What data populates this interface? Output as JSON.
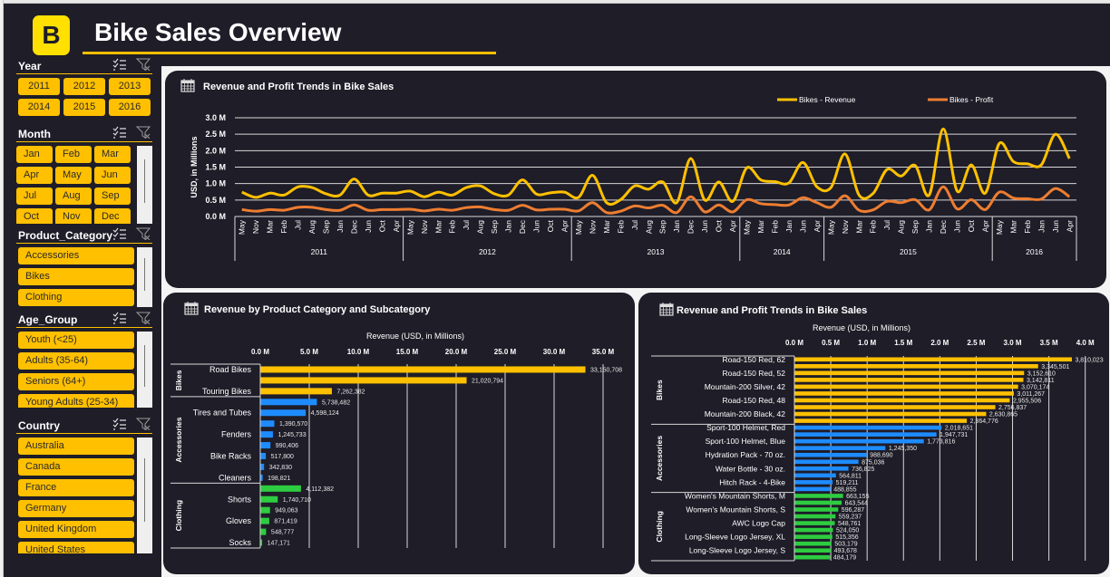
{
  "header": {
    "logo_letter": "B",
    "title": "Bike Sales Overview"
  },
  "colors": {
    "background": "#1e1d28",
    "accent": "#ffc000",
    "logo": "#ffe000",
    "bikes": "#ffc000",
    "accessories": "#1e8cff",
    "clothing": "#2ecc40",
    "revenue_line": "#ffc000",
    "profit_line": "#ed7d31"
  },
  "slicers": [
    {
      "title": "Year",
      "items": [
        "2011",
        "2012",
        "2013",
        "2014",
        "2015",
        "2016"
      ]
    },
    {
      "title": "Month",
      "items": [
        "Jan",
        "Feb",
        "Mar",
        "Apr",
        "May",
        "Jun",
        "Jul",
        "Aug",
        "Sep",
        "Oct",
        "Nov",
        "Dec"
      ]
    },
    {
      "title": "Product_Category",
      "items": [
        "Accessories",
        "Bikes",
        "Clothing"
      ]
    },
    {
      "title": "Age_Group",
      "items": [
        "Youth (<25)",
        "Adults (35-64)",
        "Seniors (64+)",
        "Young Adults (25-34)"
      ]
    },
    {
      "title": "Country",
      "items": [
        "Australia",
        "Canada",
        "France",
        "Germany",
        "United Kingdom",
        "United States"
      ]
    }
  ],
  "chart_data": [
    {
      "type": "line",
      "title": "Revenue and Profit Trends in Bike Sales",
      "ylabel": "USD, in Millions",
      "ylim": [
        0,
        3.0
      ],
      "yticks": [
        "0.0 M",
        "0.5 M",
        "1.0 M",
        "1.5 M",
        "2.0 M",
        "2.5 M",
        "3.0 M"
      ],
      "grid": true,
      "legend_position": "top-right",
      "years": [
        {
          "year": "2011",
          "months": [
            "May",
            "Nov",
            "Mar",
            "Feb",
            "Jul",
            "Aug",
            "Sep",
            "Jan",
            "Dec",
            "Jun",
            "Oct",
            "Apr"
          ]
        },
        {
          "year": "2012",
          "months": [
            "May",
            "Nov",
            "Mar",
            "Feb",
            "Jul",
            "Aug",
            "Sep",
            "Jan",
            "Dec",
            "Jun",
            "Oct",
            "Apr"
          ]
        },
        {
          "year": "2013",
          "months": [
            "May",
            "Nov",
            "Mar",
            "Feb",
            "Jul",
            "Aug",
            "Sep",
            "Jan",
            "Dec",
            "Jun",
            "Oct",
            "Apr"
          ]
        },
        {
          "year": "2014",
          "months": [
            "May",
            "Mar",
            "Feb",
            "Jan",
            "Jun",
            "Apr"
          ]
        },
        {
          "year": "2015",
          "months": [
            "May",
            "Nov",
            "Mar",
            "Feb",
            "Jul",
            "Aug",
            "Sep",
            "Jan",
            "Dec",
            "Jun",
            "Oct",
            "Apr"
          ]
        },
        {
          "year": "2016",
          "months": [
            "May",
            "Mar",
            "Feb",
            "Jan",
            "Jun",
            "Apr"
          ]
        }
      ],
      "series": [
        {
          "name": "Bikes -  Revenue",
          "values": [
            0.74,
            0.58,
            0.71,
            0.65,
            0.9,
            0.88,
            0.69,
            0.65,
            1.14,
            0.65,
            0.71,
            0.71,
            0.77,
            0.6,
            0.74,
            0.65,
            0.88,
            0.93,
            0.69,
            0.65,
            1.11,
            0.68,
            0.72,
            0.74,
            0.58,
            1.25,
            0.42,
            0.51,
            0.93,
            0.83,
            1.05,
            0.42,
            1.76,
            0.5,
            1.05,
            0.46,
            1.48,
            1.11,
            1.06,
            1.02,
            1.64,
            0.9,
            0.88,
            1.9,
            0.65,
            0.7,
            1.43,
            1.23,
            1.55,
            0.65,
            2.66,
            0.77,
            1.57,
            0.71,
            2.22,
            1.67,
            1.6,
            1.57,
            2.5,
            1.76
          ]
        },
        {
          "name": "Bikes -  Profit",
          "values": [
            0.21,
            0.16,
            0.21,
            0.19,
            0.28,
            0.28,
            0.21,
            0.19,
            0.35,
            0.19,
            0.21,
            0.21,
            0.22,
            0.17,
            0.22,
            0.19,
            0.27,
            0.29,
            0.21,
            0.19,
            0.34,
            0.2,
            0.22,
            0.22,
            0.17,
            0.42,
            0.12,
            0.16,
            0.32,
            0.26,
            0.34,
            0.12,
            0.6,
            0.14,
            0.35,
            0.14,
            0.51,
            0.39,
            0.36,
            0.35,
            0.57,
            0.42,
            0.28,
            0.63,
            0.19,
            0.2,
            0.46,
            0.42,
            0.51,
            0.2,
            0.9,
            0.23,
            0.51,
            0.21,
            0.74,
            0.56,
            0.54,
            0.53,
            0.85,
            0.6
          ]
        }
      ]
    },
    {
      "type": "bar",
      "title": "Revenue by Product Category and Subcategory",
      "xlabel": "Revenue (USD, in Millions)",
      "xlim": [
        0,
        35
      ],
      "xticks": [
        "0.0 M",
        "5.0 M",
        "10.0 M",
        "15.0 M",
        "20.0 M",
        "25.0 M",
        "30.0 M",
        "35.0 M"
      ],
      "grid": true,
      "groups": [
        {
          "name": "Bikes",
          "color": "#ffc000",
          "bars": [
            {
              "label": "Road Bikes",
              "value": 33150708,
              "value_label": "33,150,708"
            },
            {
              "label": "",
              "value": 21020794,
              "value_label": "21,020,794"
            },
            {
              "label": "Touring Bikes",
              "value": 7262382,
              "value_label": "7,262,382"
            }
          ]
        },
        {
          "name": "Accessories",
          "color": "#1e8cff",
          "bars": [
            {
              "label": "",
              "value": 5738482,
              "value_label": "5,738,482"
            },
            {
              "label": "Tires and Tubes",
              "value": 4598124,
              "value_label": "4,598,124"
            },
            {
              "label": "",
              "value": 1390570,
              "value_label": "1,390,570"
            },
            {
              "label": "Fenders",
              "value": 1245733,
              "value_label": "1,245,733"
            },
            {
              "label": "",
              "value": 990406,
              "value_label": "990,406"
            },
            {
              "label": "Bike Racks",
              "value": 517800,
              "value_label": "517,800"
            },
            {
              "label": "",
              "value": 342830,
              "value_label": "342,830"
            },
            {
              "label": "Cleaners",
              "value": 198821,
              "value_label": "198,821"
            }
          ]
        },
        {
          "name": "Clothing",
          "color": "#2ecc40",
          "bars": [
            {
              "label": "",
              "value": 4112382,
              "value_label": "4,112,382"
            },
            {
              "label": "Shorts",
              "value": 1740710,
              "value_label": "1,740,710"
            },
            {
              "label": "",
              "value": 949063,
              "value_label": "949,063"
            },
            {
              "label": "Gloves",
              "value": 871419,
              "value_label": "871,419"
            },
            {
              "label": "",
              "value": 548777,
              "value_label": "548,777"
            },
            {
              "label": "Socks",
              "value": 147171,
              "value_label": "147,171"
            }
          ]
        }
      ]
    },
    {
      "type": "bar",
      "title": "Revenue and Profit Trends in Bike Sales",
      "xlabel": "Revenue (USD, in Millions)",
      "xlim": [
        0,
        4.0
      ],
      "xticks": [
        "0.0 M",
        "0.5 M",
        "1.0 M",
        "1.5 M",
        "2.0 M",
        "2.5 M",
        "3.0 M",
        "3.5 M",
        "4.0 M"
      ],
      "grid": true,
      "groups": [
        {
          "name": "Bikes",
          "color": "#ffc000",
          "bars": [
            {
              "label": "Road-150 Red, 62",
              "value": 3810023,
              "value_label": "3,810,023"
            },
            {
              "label": "",
              "value": 3345501,
              "value_label": "3,345,501"
            },
            {
              "label": "Road-150 Red, 52",
              "value": 3152610,
              "value_label": "3,152,610"
            },
            {
              "label": "",
              "value": 3142811,
              "value_label": "3,142,811"
            },
            {
              "label": "Mountain-200 Silver, 42",
              "value": 3070174,
              "value_label": "3,070,174"
            },
            {
              "label": "",
              "value": 3011267,
              "value_label": "3,011,267"
            },
            {
              "label": "Road-150 Red, 48",
              "value": 2955506,
              "value_label": "2,955,506"
            },
            {
              "label": "",
              "value": 2756837,
              "value_label": "2,756,837"
            },
            {
              "label": "Mountain-200 Black, 42",
              "value": 2630865,
              "value_label": "2,630,865"
            },
            {
              "label": "",
              "value": 2364776,
              "value_label": "2,364,776"
            }
          ]
        },
        {
          "name": "Accessories",
          "color": "#1e8cff",
          "bars": [
            {
              "label": "Sport-100 Helmet, Red",
              "value": 2018651,
              "value_label": "2,018,651"
            },
            {
              "label": "",
              "value": 1947731,
              "value_label": "1,947,731"
            },
            {
              "label": "Sport-100 Helmet, Blue",
              "value": 1773816,
              "value_label": "1,773,816"
            },
            {
              "label": "",
              "value": 1245350,
              "value_label": "1,245,350"
            },
            {
              "label": "Hydration Pack - 70 oz.",
              "value": 988690,
              "value_label": "988,690"
            },
            {
              "label": "",
              "value": 875036,
              "value_label": "875,036"
            },
            {
              "label": "Water Bottle - 30 oz.",
              "value": 736825,
              "value_label": "736,825"
            },
            {
              "label": "",
              "value": 564811,
              "value_label": "564,811"
            },
            {
              "label": "Hitch Rack - 4-Bike",
              "value": 519211,
              "value_label": "519,211"
            },
            {
              "label": "",
              "value": 488855,
              "value_label": "488,855"
            }
          ]
        },
        {
          "name": "Clothing",
          "color": "#2ecc40",
          "bars": [
            {
              "label": "Women's Mountain Shorts, M",
              "value": 663155,
              "value_label": "663,155"
            },
            {
              "label": "",
              "value": 643544,
              "value_label": "643,544"
            },
            {
              "label": "Women's Mountain Shorts, S",
              "value": 596287,
              "value_label": "596,287"
            },
            {
              "label": "",
              "value": 559237,
              "value_label": "559,237"
            },
            {
              "label": "AWC Logo Cap",
              "value": 548761,
              "value_label": "548,761"
            },
            {
              "label": "",
              "value": 524050,
              "value_label": "524,050"
            },
            {
              "label": "Long-Sleeve Logo Jersey, XL",
              "value": 515356,
              "value_label": "515,356"
            },
            {
              "label": "",
              "value": 503179,
              "value_label": "503,179"
            },
            {
              "label": "Long-Sleeve Logo Jersey, S",
              "value": 493678,
              "value_label": "493,678"
            },
            {
              "label": "",
              "value": 484179,
              "value_label": "484,179"
            }
          ]
        }
      ]
    }
  ]
}
